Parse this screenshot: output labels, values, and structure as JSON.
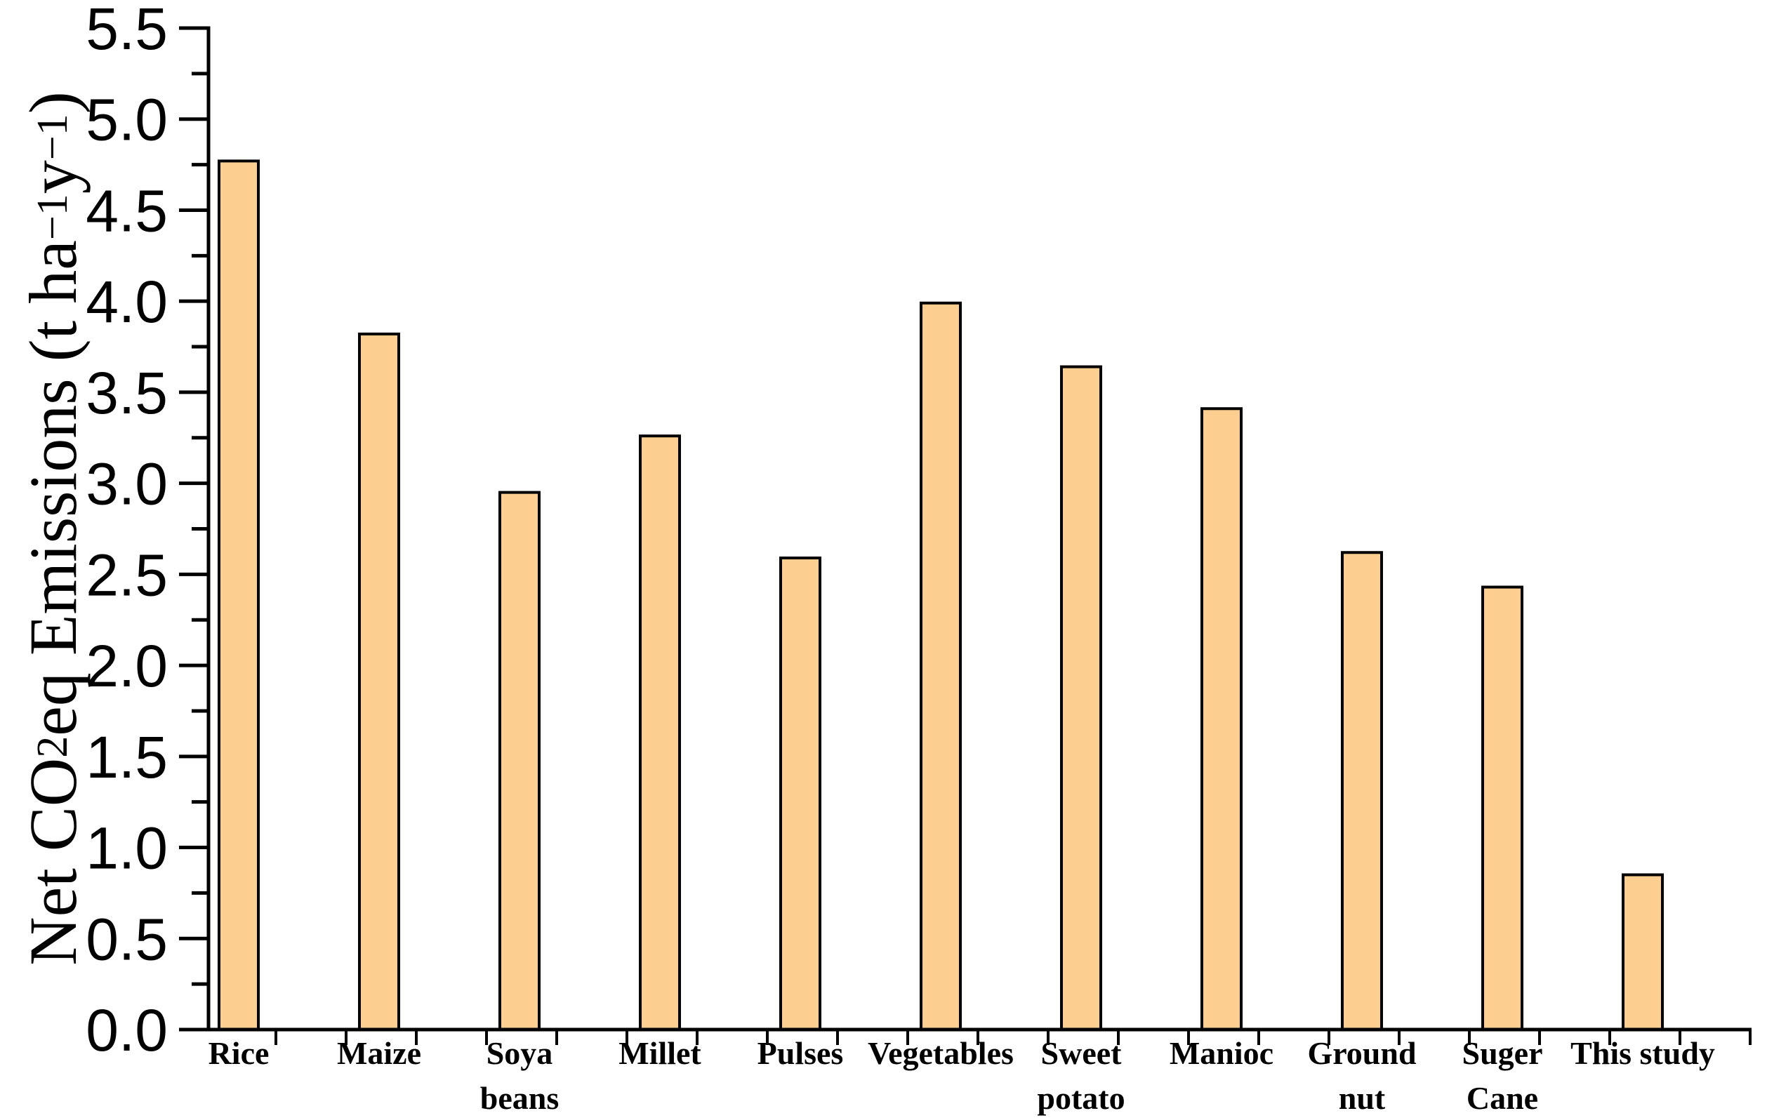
{
  "figure": {
    "background_color": "#FFFFFF"
  },
  "chart_data": {
    "type": "bar",
    "title": "",
    "xlabel": "",
    "ylabel": "Net CO2eq Emissions (t ha-1 y-1)",
    "ylabel_segments": [
      {
        "text": "Net CO"
      },
      {
        "text": "2",
        "style": "sub"
      },
      {
        "text": "eq Emissions (t ha"
      },
      {
        "text": "−1",
        "style": "sup"
      },
      {
        "text": " y"
      },
      {
        "text": "−1",
        "style": "sup"
      },
      {
        "text": ")"
      }
    ],
    "categories": [
      {
        "lines": [
          "Rice"
        ]
      },
      {
        "lines": [
          "Maize"
        ]
      },
      {
        "lines": [
          "Soya",
          "beans"
        ]
      },
      {
        "lines": [
          "Millet"
        ]
      },
      {
        "lines": [
          "Pulses"
        ]
      },
      {
        "lines": [
          "Vegetables"
        ]
      },
      {
        "lines": [
          "Sweet",
          "potato"
        ]
      },
      {
        "lines": [
          "Manioc"
        ]
      },
      {
        "lines": [
          "Ground",
          "nut"
        ]
      },
      {
        "lines": [
          "Suger",
          "Cane"
        ]
      },
      {
        "lines": [
          "This study"
        ]
      }
    ],
    "values": [
      4.77,
      3.82,
      2.95,
      3.26,
      2.59,
      3.99,
      3.64,
      3.41,
      2.62,
      2.43,
      0.85
    ],
    "ylim": [
      0.0,
      5.5
    ],
    "y_major_step": 0.5,
    "y_minor_step": 0.25,
    "y_tick_labels": [
      "0.0",
      "0.5",
      "1.0",
      "1.5",
      "2.0",
      "2.5",
      "3.0",
      "3.5",
      "4.0",
      "4.5",
      "5.0",
      "5.5"
    ],
    "grid": false,
    "legend": null,
    "bar_color": "#FCCF90",
    "bar_border_color": "#000000",
    "axis_color": "#000000",
    "text_color": "#000000"
  }
}
